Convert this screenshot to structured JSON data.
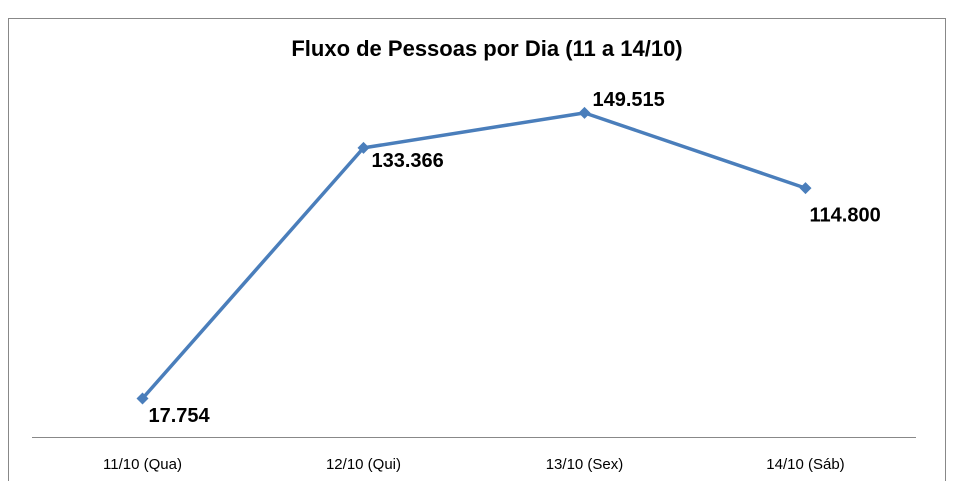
{
  "chart_data": {
    "type": "line",
    "title": "Fluxo de Pessoas por Dia (11 a 14/10)",
    "categories": [
      "11/10 (Qua)",
      "12/10 (Qui)",
      "13/10 (Sex)",
      "14/10 (Sáb)"
    ],
    "values": [
      17754,
      133366,
      149515,
      114800
    ],
    "value_labels": [
      "17.754",
      "133.366",
      "149.515",
      "114.800"
    ],
    "color": "#4a7ebb"
  }
}
